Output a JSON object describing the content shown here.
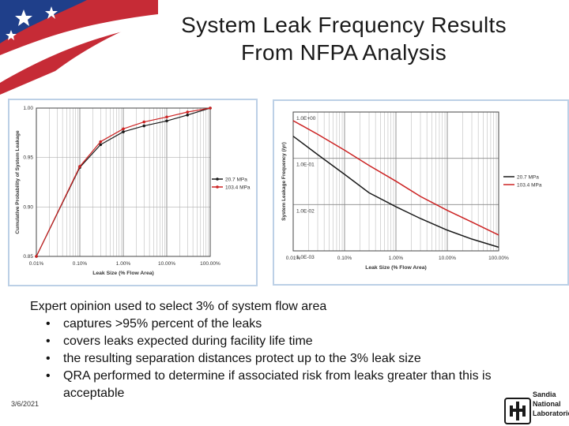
{
  "slide": {
    "title_line1": "System Leak Frequency Results",
    "title_line2": "From NFPA Analysis",
    "intro": "Expert opinion used to select 3% of system flow area",
    "bullets": [
      "captures >95% percent of the leaks",
      "covers leaks expected during facility life time",
      "the resulting separation distances protect up to the 3% leak size",
      "QRA performed to determine if associated risk from leaks greater than this is acceptable"
    ],
    "date": "3/6/2021",
    "logo_lines": [
      "Sandia",
      "National",
      "Laboratories"
    ]
  },
  "colors": {
    "black_series": "#1a1a1a",
    "red_series": "#cc2222",
    "grid": "#b0b0b0",
    "frame": "#bcd0e6"
  },
  "chart_data": [
    {
      "type": "line",
      "xlabel": "Leak Size (% Flow Area)",
      "ylabel": "Cumulative Probability of System Leakage",
      "x_scale": "log",
      "x_ticks": [
        "0.01%",
        "0.10%",
        "1.00%",
        "10.00%",
        "100.00%"
      ],
      "x_tick_values": [
        0.01,
        0.1,
        1,
        10,
        100
      ],
      "y_ticks": [
        "0.85",
        "0.90",
        "0.95",
        "1.00"
      ],
      "y_tick_values": [
        0.85,
        0.9,
        0.95,
        1.0
      ],
      "ylim": [
        0.85,
        1.0
      ],
      "xlim": [
        0.01,
        100
      ],
      "legend_position": "right",
      "series": [
        {
          "name": "20.7 MPa",
          "color": "#1a1a1a",
          "x": [
            0.01,
            0.1,
            0.3,
            1,
            3,
            10,
            30,
            100
          ],
          "y": [
            0.85,
            0.94,
            0.963,
            0.976,
            0.982,
            0.987,
            0.993,
            1.0
          ]
        },
        {
          "name": "103.4 MPa",
          "color": "#cc2222",
          "x": [
            0.01,
            0.1,
            0.3,
            1,
            3,
            10,
            30,
            100
          ],
          "y": [
            0.85,
            0.941,
            0.966,
            0.979,
            0.986,
            0.991,
            0.996,
            1.0
          ]
        }
      ]
    },
    {
      "type": "line",
      "xlabel": "Leak Size (% Flow Area)",
      "ylabel": "System Leakage Frequency (/yr)",
      "x_scale": "log",
      "y_scale": "log",
      "x_ticks": [
        "0.01%",
        "0.10%",
        "1.00%",
        "10.00%",
        "100.00%"
      ],
      "x_tick_values": [
        0.01,
        0.1,
        1,
        10,
        100
      ],
      "y_ticks": [
        "1.0E+00",
        "1.0E-01",
        "1.0E-02",
        "1.0E-03"
      ],
      "y_tick_values": [
        1,
        0.1,
        0.01,
        0.001
      ],
      "ylim": [
        0.001,
        1
      ],
      "xlim": [
        0.01,
        100
      ],
      "legend_position": "right",
      "series": [
        {
          "name": "20.7 MPa",
          "color": "#1a1a1a",
          "x": [
            0.01,
            0.03,
            0.1,
            0.3,
            1,
            3,
            10,
            30,
            100
          ],
          "y": [
            0.3,
            0.12,
            0.045,
            0.018,
            0.009,
            0.005,
            0.0028,
            0.0018,
            0.0012
          ]
        },
        {
          "name": "103.4 MPa",
          "color": "#cc2222",
          "x": [
            0.01,
            0.03,
            0.1,
            0.3,
            1,
            3,
            10,
            30,
            100
          ],
          "y": [
            0.65,
            0.33,
            0.15,
            0.07,
            0.032,
            0.015,
            0.0075,
            0.0042,
            0.0022
          ]
        }
      ]
    }
  ]
}
